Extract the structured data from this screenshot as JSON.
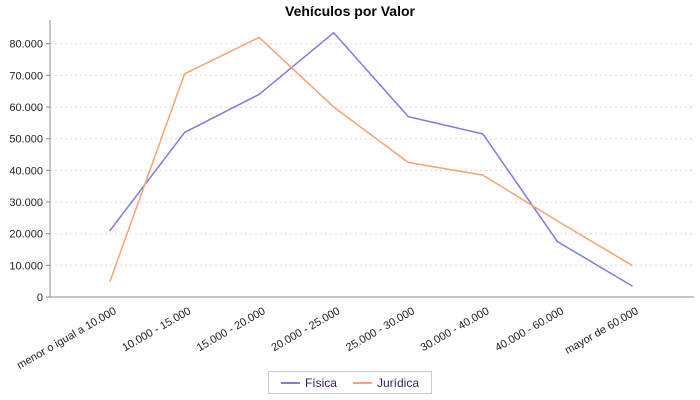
{
  "title": "Vehículos por Valor",
  "legend": {
    "items": [
      {
        "label": "Física",
        "color": "#7c7ce3"
      },
      {
        "label": "Jurídica",
        "color": "#f9a470"
      }
    ]
  },
  "colors": {
    "grid": "#d9d9d9",
    "axis": "#8c8c8c",
    "tick_text": "#222222",
    "legend_text": "#3a1a5e",
    "background": "#ffffff"
  },
  "chart_data": {
    "type": "line",
    "title": "Vehículos por Valor",
    "xlabel": "",
    "ylabel": "",
    "grid": "horizontal-dashed",
    "legend_position": "bottom",
    "ylim": [
      0,
      87500
    ],
    "y_ticks": [
      {
        "value": 0,
        "label": "0"
      },
      {
        "value": 10000,
        "label": "10.000"
      },
      {
        "value": 20000,
        "label": "20.000"
      },
      {
        "value": 30000,
        "label": "30.000"
      },
      {
        "value": 40000,
        "label": "40.000"
      },
      {
        "value": 50000,
        "label": "50.000"
      },
      {
        "value": 60000,
        "label": "60.000"
      },
      {
        "value": 70000,
        "label": "70.000"
      },
      {
        "value": 80000,
        "label": "80.000"
      }
    ],
    "categories": [
      "menor o igual a 10.000",
      "10.000 - 15.000",
      "15.000 - 20.000",
      "20.000 - 25.000",
      "25.000 - 30.000",
      "30.000 - 40.000",
      "40.000 - 60.000",
      "mayor de 60.000"
    ],
    "series": [
      {
        "name": "Física",
        "color": "#7c7ce3",
        "values": [
          21000,
          52000,
          64000,
          83500,
          57000,
          51500,
          17500,
          3500
        ]
      },
      {
        "name": "Jurídica",
        "color": "#f9a470",
        "values": [
          5000,
          70500,
          82000,
          60000,
          42500,
          38500,
          24000,
          10000
        ]
      }
    ]
  }
}
